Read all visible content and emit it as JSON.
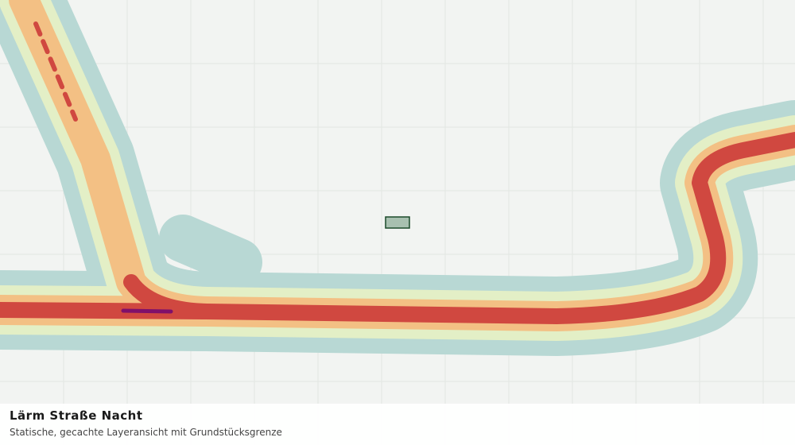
{
  "title": "Lärm Straße Nacht",
  "subtitle": "Statische, gecachte Layeransicht mit Grundstücksgrenze"
}
